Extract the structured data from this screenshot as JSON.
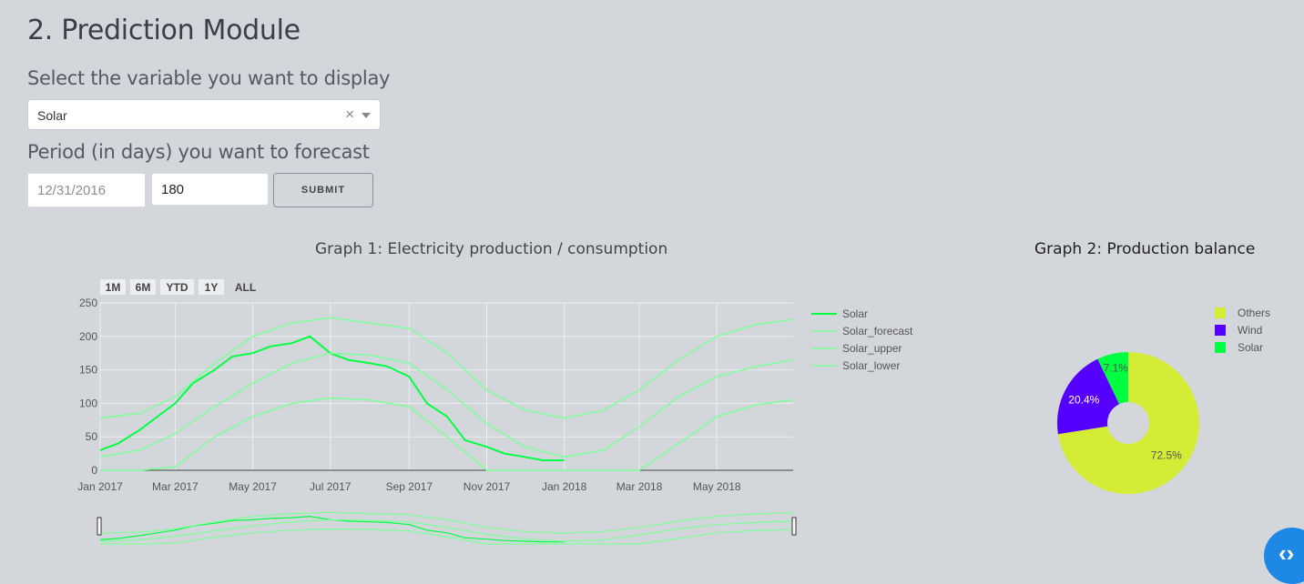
{
  "page": {
    "title": "2. Prediction Module",
    "variable_label": "Select the variable you want to display",
    "period_label": "Period (in days) you want to forecast"
  },
  "controls": {
    "variable_value": "Solar",
    "clear_glyph": "×",
    "date_value": "12/31/2016",
    "days_value": "180",
    "submit_label": "SUBMIT"
  },
  "graph1": {
    "title": "Graph 1: Electricity production / consumption",
    "range_buttons": [
      "1M",
      "6M",
      "YTD",
      "1Y",
      "ALL"
    ]
  },
  "graph2": {
    "title": "Graph 2: Production balance"
  },
  "icons": {
    "scroll_button": "chevrons-icon",
    "scroll_glyph": "‹›"
  },
  "colors": {
    "solar": "#00ff41",
    "forecast_bands": "#7fff9a",
    "others": "#d4ec36",
    "wind": "#5500ff",
    "fab": "#1e88e5"
  },
  "chart_data": [
    {
      "type": "line",
      "x_range": [
        "2017-01-01",
        "2018-06-30"
      ],
      "ylim": [
        0,
        250
      ],
      "yticks": [
        0,
        50,
        100,
        150,
        200,
        250
      ],
      "xtick_labels": [
        "Jan 2017",
        "Mar 2017",
        "May 2017",
        "Jul 2017",
        "Sep 2017",
        "Nov 2017",
        "Jan 2018",
        "Mar 2018",
        "May 2018"
      ],
      "grid": true,
      "legend": "right",
      "series": [
        {
          "name": "Solar",
          "x": [
            "2017-01-01",
            "2017-01-15",
            "2017-02-01",
            "2017-02-15",
            "2017-03-01",
            "2017-03-15",
            "2017-04-01",
            "2017-04-15",
            "2017-05-01",
            "2017-05-15",
            "2017-06-01",
            "2017-06-15",
            "2017-07-01",
            "2017-07-15",
            "2017-08-01",
            "2017-08-15",
            "2017-09-01",
            "2017-09-15",
            "2017-10-01",
            "2017-10-15",
            "2017-11-01",
            "2017-11-15",
            "2017-12-01",
            "2017-12-15",
            "2018-01-01"
          ],
          "y": [
            30,
            40,
            60,
            80,
            100,
            130,
            150,
            170,
            175,
            185,
            190,
            200,
            175,
            165,
            160,
            155,
            140,
            100,
            80,
            45,
            35,
            25,
            20,
            15,
            15
          ]
        },
        {
          "name": "Solar_forecast",
          "x": [
            "2017-01-01",
            "2017-02-01",
            "2017-03-01",
            "2017-04-01",
            "2017-05-01",
            "2017-06-01",
            "2017-07-01",
            "2017-08-01",
            "2017-09-01",
            "2017-10-01",
            "2017-11-01",
            "2017-12-01",
            "2018-01-01",
            "2018-02-01",
            "2018-03-01",
            "2018-04-01",
            "2018-05-01",
            "2018-06-01",
            "2018-06-30"
          ],
          "y": [
            20,
            30,
            55,
            95,
            130,
            160,
            175,
            172,
            160,
            120,
            70,
            35,
            20,
            30,
            65,
            110,
            140,
            155,
            165
          ]
        },
        {
          "name": "Solar_upper",
          "x": [
            "2017-01-01",
            "2017-02-01",
            "2017-03-01",
            "2017-04-01",
            "2017-05-01",
            "2017-06-01",
            "2017-07-01",
            "2017-08-01",
            "2017-09-01",
            "2017-10-01",
            "2017-11-01",
            "2017-12-01",
            "2018-01-01",
            "2018-02-01",
            "2018-03-01",
            "2018-04-01",
            "2018-05-01",
            "2018-06-01",
            "2018-06-30"
          ],
          "y": [
            78,
            85,
            110,
            160,
            200,
            220,
            228,
            220,
            212,
            175,
            120,
            90,
            78,
            90,
            120,
            165,
            200,
            218,
            225
          ]
        },
        {
          "name": "Solar_lower",
          "x": [
            "2017-01-01",
            "2017-02-01",
            "2017-03-01",
            "2017-04-01",
            "2017-05-01",
            "2017-06-01",
            "2017-07-01",
            "2017-08-01",
            "2017-09-01",
            "2017-10-01",
            "2017-11-01",
            "2017-12-01",
            "2018-01-01",
            "2018-02-01",
            "2018-03-01",
            "2018-04-01",
            "2018-05-01",
            "2018-06-01",
            "2018-06-30"
          ],
          "y": [
            0,
            0,
            5,
            50,
            80,
            100,
            108,
            105,
            95,
            50,
            0,
            0,
            0,
            0,
            0,
            40,
            80,
            98,
            105
          ]
        }
      ]
    },
    {
      "type": "pie",
      "hole": true,
      "legend": "top-right",
      "slices": [
        {
          "name": "Others",
          "value": 72.5,
          "label": "72.5%"
        },
        {
          "name": "Wind",
          "value": 20.4,
          "label": "20.4%"
        },
        {
          "name": "Solar",
          "value": 7.1,
          "label": "7.1%"
        }
      ]
    }
  ]
}
